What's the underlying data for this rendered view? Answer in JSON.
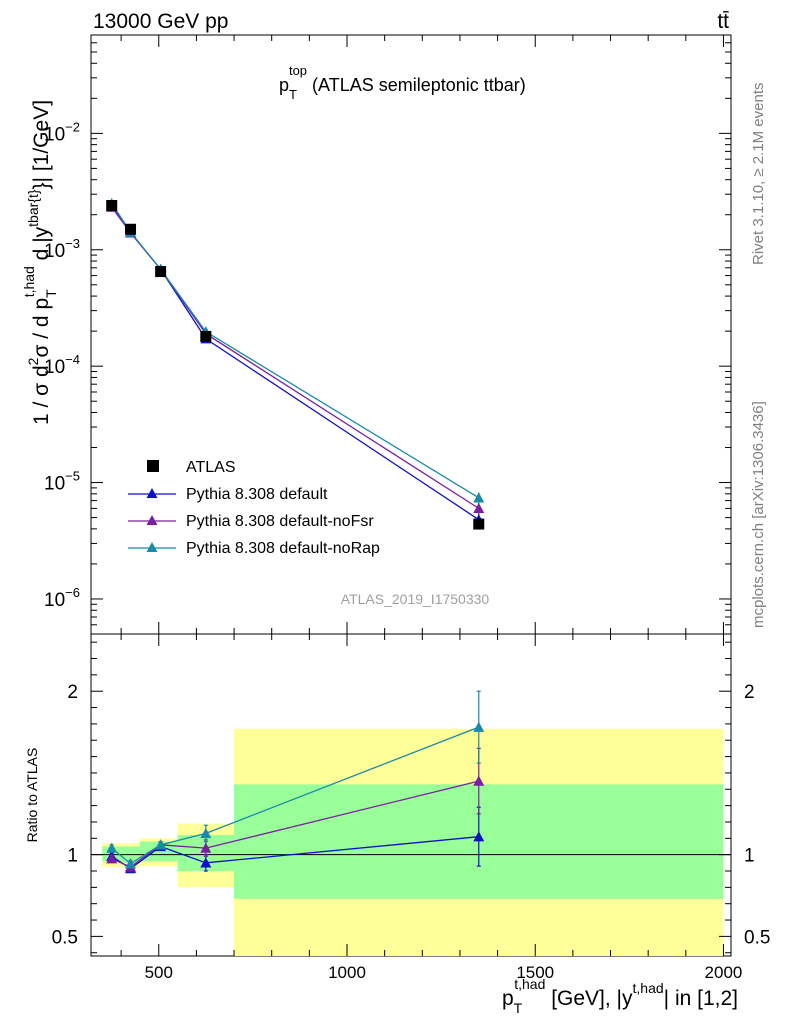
{
  "header": {
    "energy_label": "13000 GeV pp",
    "process_label": "tt̄",
    "rivet_label": "Rivet 3.1.10, ≥ 2.1M events",
    "mcplots_label": "mcplots.cern.ch [arXiv:1306.3436]",
    "analysis_label": "ATLAS_2019_I1750330"
  },
  "chart_data": [
    {
      "type": "line",
      "title": "p_T^top (ATLAS semileptonic ttbar)",
      "title_parts": {
        "main": "p",
        "sub": "T",
        "sup": "top",
        "rest": " (ATLAS semileptonic ttbar)"
      },
      "ylabel": "1 / σ d²σ / d p_T^{t,had} d |y^{tbar{t}}| [1/GeV]",
      "ylabel_parts": {
        "pre": "1 / σ d",
        "sup1": "2",
        "mid": "σ / d p",
        "sub2": "T",
        "sup2": "t,had",
        "post1": " d |y",
        "sup3": "tbar{t}",
        "post2": "}| [1/GeV]"
      },
      "yscale": "log",
      "xlim": [
        320,
        2020
      ],
      "ylim": [
        5e-07,
        0.07
      ],
      "y_ticks": [
        {
          "value": 1e-06,
          "base": "10",
          "exp": "−6"
        },
        {
          "value": 1e-05,
          "base": "10",
          "exp": "−5"
        },
        {
          "value": 0.0001,
          "base": "10",
          "exp": "−4"
        },
        {
          "value": 0.001,
          "base": "10",
          "exp": "−3"
        },
        {
          "value": 0.01,
          "base": "10",
          "exp": "−2"
        }
      ],
      "legend_position": "bottom-left",
      "data": {
        "name": "ATLAS",
        "x": [
          375,
          425,
          505,
          625,
          1350
        ],
        "y": [
          0.0024,
          0.0015,
          0.00065,
          0.00018,
          4.4e-06
        ],
        "xerr": [
          [
            350,
            400
          ],
          [
            400,
            450
          ],
          [
            450,
            550
          ],
          [
            550,
            700
          ],
          [
            700,
            2000
          ]
        ]
      },
      "series": [
        {
          "name": "Pythia 8.308 default",
          "color": "#1010cc",
          "x": [
            375,
            425,
            505,
            625,
            1350
          ],
          "y": [
            0.00238,
            0.0014,
            0.00068,
            0.000172,
            4.8e-06
          ],
          "yerr": [
            5e-05,
            4e-05,
            2e-05,
            6e-06,
            6e-07
          ]
        },
        {
          "name": "Pythia 8.308 default-noFsr",
          "color": "#7b1fa2",
          "x": [
            375,
            425,
            505,
            625,
            1350
          ],
          "y": [
            0.00232,
            0.0014,
            0.00068,
            0.00019,
            6e-06
          ],
          "yerr": [
            5e-05,
            4e-05,
            2e-05,
            6e-06,
            7e-07
          ]
        },
        {
          "name": "Pythia 8.308 default-noRap",
          "color": "#1a8aa8",
          "x": [
            375,
            425,
            505,
            625,
            1350
          ],
          "y": [
            0.0025,
            0.00142,
            0.00068,
            0.000198,
            7.4e-06
          ],
          "yerr": [
            5e-05,
            4e-05,
            2e-05,
            6e-06,
            8e-07
          ]
        }
      ]
    },
    {
      "type": "line",
      "ylabel": "Ratio to ATLAS",
      "xlabel": "p_T^{t,had} [GeV], |y^{t,had}| in [1,2]",
      "xlabel_parts": {
        "main": "p",
        "sub": "T",
        "sup": "t,had",
        "mid": " [GeV], |y",
        "sup2": "t,had",
        "post": "| in [1,2]"
      },
      "xlim": [
        320,
        2020
      ],
      "ylim": [
        0.38,
        2.35
      ],
      "x_ticks": [
        500,
        1000,
        1500,
        2000
      ],
      "x_tick_labels": [
        "500",
        "1000",
        "1500",
        "2000"
      ],
      "y_ticks": [
        0.5,
        1,
        2
      ],
      "y_tick_labels": [
        "0.5",
        "1",
        "2"
      ],
      "reference_line": 1.0,
      "uncertainty_bands": [
        {
          "x": [
            350,
            400
          ],
          "inner": [
            0.96,
            1.05
          ],
          "outer": [
            0.925,
            1.07
          ]
        },
        {
          "x": [
            400,
            450
          ],
          "inner": [
            0.95,
            1.05
          ],
          "outer": [
            0.92,
            1.07
          ]
        },
        {
          "x": [
            450,
            550
          ],
          "inner": [
            0.96,
            1.08
          ],
          "outer": [
            0.93,
            1.1
          ]
        },
        {
          "x": [
            550,
            700
          ],
          "inner": [
            0.9,
            1.12
          ],
          "outer": [
            0.8,
            1.19
          ]
        },
        {
          "x": [
            700,
            2000
          ],
          "inner": [
            0.73,
            1.43
          ],
          "outer": [
            0.28,
            1.77
          ]
        }
      ],
      "series": [
        {
          "name": "Pythia 8.308 default",
          "color": "#1010cc",
          "x": [
            375,
            425,
            505,
            625,
            1350
          ],
          "y": [
            0.99,
            0.915,
            1.05,
            0.95,
            1.11
          ],
          "yerr": [
            0.02,
            0.02,
            0.02,
            0.05,
            0.18
          ]
        },
        {
          "name": "Pythia 8.308 default-noFsr",
          "color": "#7b1fa2",
          "x": [
            375,
            425,
            505,
            625,
            1350
          ],
          "y": [
            0.975,
            0.925,
            1.06,
            1.04,
            1.45
          ],
          "yerr": [
            0.02,
            0.02,
            0.02,
            0.05,
            0.2
          ]
        },
        {
          "name": "Pythia 8.308 default-noRap",
          "color": "#1a8aa8",
          "x": [
            375,
            425,
            505,
            625,
            1350
          ],
          "y": [
            1.04,
            0.945,
            1.06,
            1.13,
            1.78
          ],
          "yerr": [
            0.02,
            0.02,
            0.02,
            0.05,
            0.22
          ]
        }
      ]
    }
  ]
}
